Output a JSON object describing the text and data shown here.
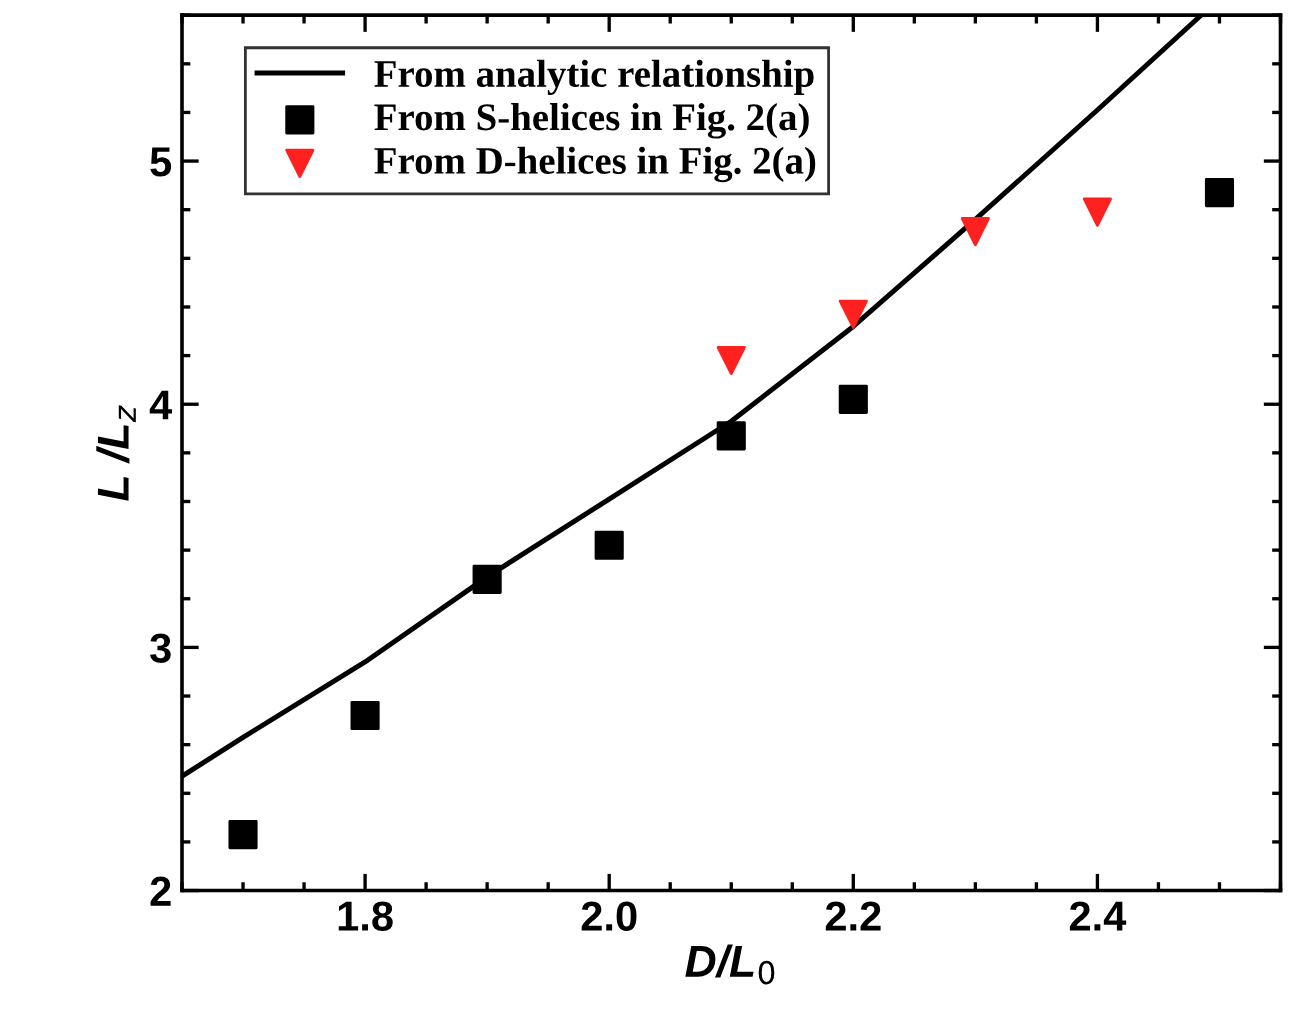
{
  "chart_data": {
    "type": "scatter",
    "xlabel": "D/L$_{0}$",
    "ylabel": "L /L$_{z}$",
    "xlim": [
      1.65,
      2.55
    ],
    "ylim": [
      2,
      5.6
    ],
    "xticks": [
      {
        "value": 1.8,
        "label": "1.8"
      },
      {
        "value": 2.0,
        "label": "2.0"
      },
      {
        "value": 2.2,
        "label": "2.2"
      },
      {
        "value": 2.4,
        "label": "2.4"
      }
    ],
    "yticks": [
      2,
      3,
      4,
      5
    ],
    "grid": false,
    "legend": "top left",
    "series": [
      {
        "name": "From analytic relationship",
        "type": "line",
        "color": "#000000",
        "marker": "none",
        "line_style": "solid",
        "x": [
          1.65,
          1.7,
          1.8,
          1.9,
          2.0,
          2.1,
          2.2,
          2.3,
          2.4,
          2.485
        ],
        "values": [
          2.47,
          2.63,
          2.94,
          3.29,
          3.61,
          3.93,
          4.32,
          4.76,
          5.21,
          5.6
        ]
      },
      {
        "name": "From S-helices in Fig. 2(a)",
        "color": "#000000",
        "marker": "square",
        "x": [
          1.7,
          1.8,
          1.9,
          2.0,
          2.1,
          2.2,
          2.5
        ],
        "values": [
          2.23,
          2.72,
          3.28,
          3.42,
          3.87,
          4.02,
          4.87
        ]
      },
      {
        "name": "From D-helices in Fig. 2(a)",
        "color": "#ff2020",
        "marker": "triangle_down",
        "x": [
          2.1,
          2.2,
          2.3,
          2.4
        ],
        "values": [
          4.18,
          4.37,
          4.71,
          4.79
        ]
      }
    ]
  }
}
